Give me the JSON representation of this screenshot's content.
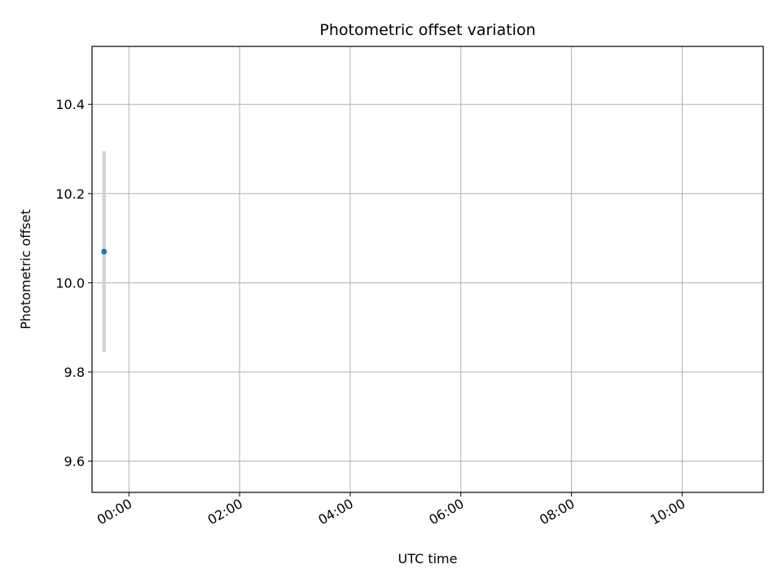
{
  "chart_data": {
    "type": "scatter",
    "title": "Photometric offset variation",
    "xlabel": "UTC time",
    "ylabel": "Photometric offset",
    "x_ticks": [
      "00:00",
      "02:00",
      "04:00",
      "06:00",
      "08:00",
      "10:00"
    ],
    "y_ticks": [
      "9.6",
      "9.8",
      "10.0",
      "10.2",
      "10.4"
    ],
    "xlim": [
      "-00:40",
      "11:28"
    ],
    "ylim": [
      9.53,
      10.53
    ],
    "grid": true,
    "point_color": "#1f77b4",
    "errorbar_color": "#d3d3d3",
    "points": [
      {
        "t": "-00:27",
        "y": 10.07,
        "lo": 9.845,
        "hi": 10.295
      },
      {
        "t": "-00:27",
        "y": 10.07,
        "lo": 9.845,
        "hi": 10.295
      },
      {
        "t": "-00:27",
        "y": 10.07,
        "lo": 9.845,
        "hi": 10.295
      },
      {
        "t": "-00:27",
        "y": 10.07,
        "lo": 9.845,
        "hi": 10.295
      },
      {
        "t": "-00:27",
        "y": 10.07,
        "lo": 9.845,
        "hi": 10.295
      },
      {
        "t": "-00:27",
        "y": 10.07,
        "lo": 9.845,
        "hi": 10.295
      },
      {
        "t": "-00:27",
        "y": 10.07,
        "lo": 9.845,
        "hi": 10.295
      },
      {
        "t": "-00:27",
        "y": 10.07,
        "lo": 9.845,
        "hi": 10.295
      },
      {
        "t": "-00:27",
        "y": 10.07,
        "lo": 9.845,
        "hi": 10.295
      },
      {
        "t": "-00:27",
        "y": 10.07,
        "lo": 9.845,
        "hi": 10.295
      },
      {
        "t": "-00:27",
        "y": 10.07,
        "lo": 9.845,
        "hi": 10.295
      },
      {
        "t": "-00:27",
        "y": 10.07,
        "lo": 9.845,
        "hi": 10.295
      },
      {
        "t": "-00:27",
        "y": 10.07,
        "lo": 9.845,
        "hi": 10.295
      },
      {
        "t": "-00:27",
        "y": 10.07,
        "lo": 9.845,
        "hi": 10.295
      },
      {
        "t": "-00:27",
        "y": 10.07,
        "lo": 9.845,
        "hi": 10.295
      },
      {
        "t": "-00:27",
        "y": 10.07,
        "lo": 9.845,
        "hi": 10.295
      },
      {
        "t": "-00:27",
        "y": 10.07,
        "lo": 9.845,
        "hi": 10.295
      },
      {
        "t": "-00:27",
        "y": 10.07,
        "lo": 9.845,
        "hi": 10.295
      },
      {
        "t": "-00:27",
        "y": 10.07,
        "lo": 9.845,
        "hi": 10.295
      },
      {
        "t": "-00:27",
        "y": 10.07,
        "lo": 9.845,
        "hi": 10.295
      }
    ]
  }
}
